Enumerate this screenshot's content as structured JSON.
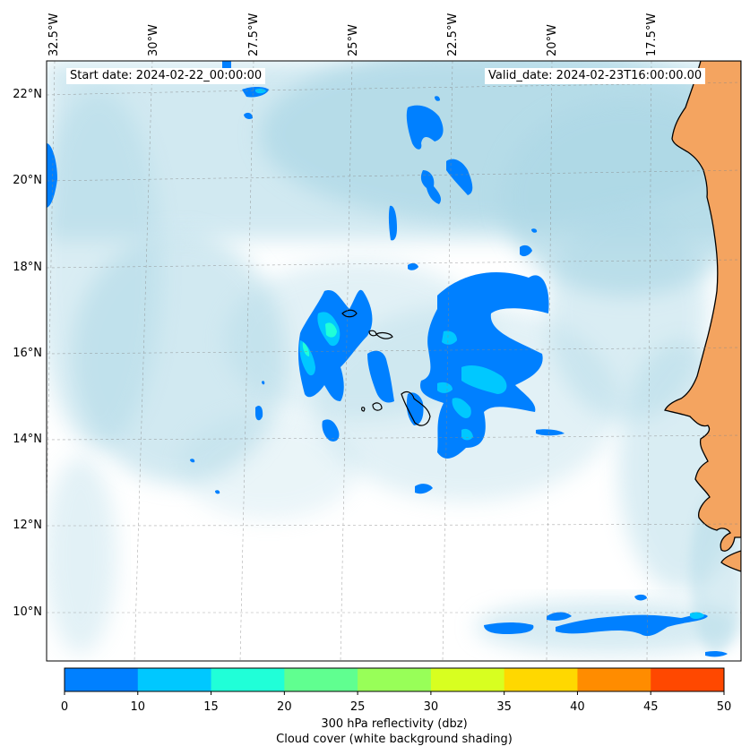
{
  "header": {
    "start_date": "Start date: 2024-02-22_00:00:00",
    "valid_date": "Valid_date: 2024-02-23T16:00:00.00"
  },
  "axes": {
    "lon_labels": [
      "32.5°W",
      "30°W",
      "27.5°W",
      "25°W",
      "22.5°W",
      "20°W",
      "17.5°W"
    ],
    "lat_labels": [
      "22°N",
      "20°N",
      "18°N",
      "16°N",
      "14°N",
      "12°N",
      "10°N"
    ]
  },
  "colorbar": {
    "ticks": [
      "0",
      "10",
      "15",
      "20",
      "25",
      "30",
      "35",
      "40",
      "45",
      "50"
    ],
    "colors": [
      "#0080ff",
      "#00c8ff",
      "#20ffd8",
      "#60ff90",
      "#98ff58",
      "#d8ff20",
      "#ffd800",
      "#ff8c00",
      "#ff4800"
    ],
    "label_line1": "300 hPa reflectivity (dbz)",
    "label_line2": "Cloud cover (white background shading)"
  },
  "colors": {
    "land": "#f4a460",
    "cloud": "#add8e6",
    "reflectivity_low": "#0080ff",
    "reflectivity_mid": "#00c8ff",
    "reflectivity_high": "#20ffd8"
  }
}
